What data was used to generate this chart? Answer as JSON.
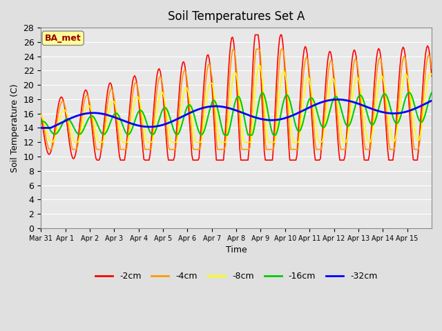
{
  "title": "Soil Temperatures Set A",
  "xlabel": "Time",
  "ylabel": "Soil Temperature (C)",
  "ylim": [
    0,
    28
  ],
  "yticks": [
    0,
    2,
    4,
    6,
    8,
    10,
    12,
    14,
    16,
    18,
    20,
    22,
    24,
    26,
    28
  ],
  "bg_color": "#e0e0e0",
  "plot_bg_color": "#e8e8e8",
  "legend_label": "BA_met",
  "legend_box_color": "#ffff99",
  "legend_text_color": "#990000",
  "series_colors": [
    "#ff0000",
    "#ff9900",
    "#ffff00",
    "#00cc00",
    "#0000ff"
  ],
  "series_labels": [
    "-2cm",
    "-4cm",
    "-8cm",
    "-16cm",
    "-32cm"
  ],
  "series_linewidths": [
    1.2,
    1.2,
    1.2,
    1.5,
    2.0
  ],
  "x_tick_labels": [
    "Mar 31",
    "Apr 1",
    "Apr 2",
    "Apr 3",
    "Apr 4",
    "Apr 5",
    "Apr 6",
    "Apr 7",
    "Apr 8",
    "Apr 9",
    "Apr 10",
    "Apr 11",
    "Apr 12",
    "Apr 13",
    "Apr 14",
    "Apr 15"
  ],
  "grid_color": "#ffffff",
  "grid_linewidth": 0.8
}
